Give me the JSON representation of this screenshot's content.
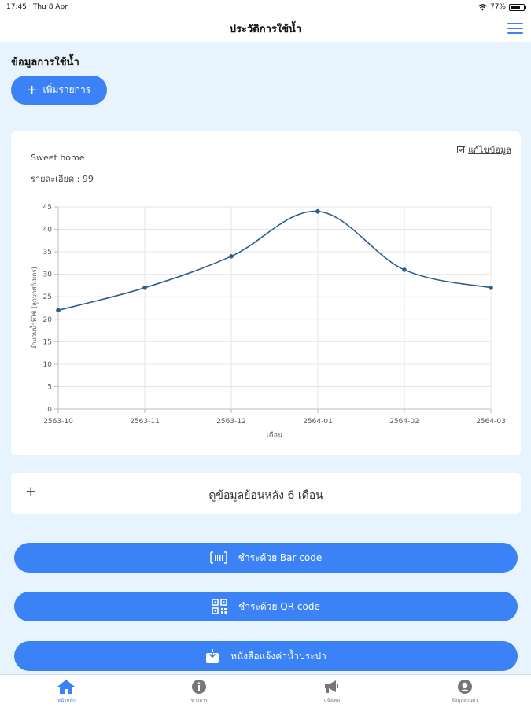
{
  "status_bar": {
    "time": "17:45",
    "date": "Thu 8 Apr",
    "battery": "77%",
    "battery_level": 0.77
  },
  "nav": {
    "title": "ประวัติการใช้น้ำ",
    "menu_icon": "hamburger-menu-icon"
  },
  "section": {
    "title": "ข้อมูลการใช้น้ำ",
    "add_label": "เพิ่มรายการ"
  },
  "card": {
    "name": "Sweet home",
    "detail": "รายละเอียด : 99",
    "edit_label": "แก้ไขข้อมูล"
  },
  "chart_data": {
    "type": "line",
    "x": [
      "2563-10",
      "2563-11",
      "2563-12",
      "2564-01",
      "2564-02",
      "2564-03"
    ],
    "series": [
      {
        "values": [
          22,
          27,
          34,
          44,
          31,
          27
        ]
      }
    ],
    "xlabel": "เดือน",
    "ylabel": "จำนวนน้ำที่ใช้ (ลูกบาศก์เมตร)",
    "ylim": [
      0,
      45
    ],
    "yticks": [
      0,
      5,
      10,
      15,
      20,
      25,
      30,
      35,
      40,
      45
    ],
    "grid": true,
    "smooth": true,
    "color": "#2b5f8f"
  },
  "history": {
    "label": "ดูข้อมูลย้อนหลัง 6 เดือน"
  },
  "buttons": {
    "barcode_label": "ชำระด้วย Bar code",
    "qrcode_label": "ชำระด้วย QR code",
    "notice_label": "หนังสือแจ้งค่าน้ำประปา"
  },
  "tabs": [
    {
      "label": "หน้าหลัก",
      "icon": "home-icon",
      "active": true
    },
    {
      "label": "ข่าวสาร",
      "icon": "info-icon",
      "active": false
    },
    {
      "label": "แจ้งเหตุ",
      "icon": "megaphone-icon",
      "active": false
    },
    {
      "label": "ข้อมูลส่วนตัว",
      "icon": "user-icon",
      "active": false
    }
  ],
  "colors": {
    "accent": "#3b82f6",
    "background": "#e8f4fd",
    "line": "#2b5f8f"
  }
}
